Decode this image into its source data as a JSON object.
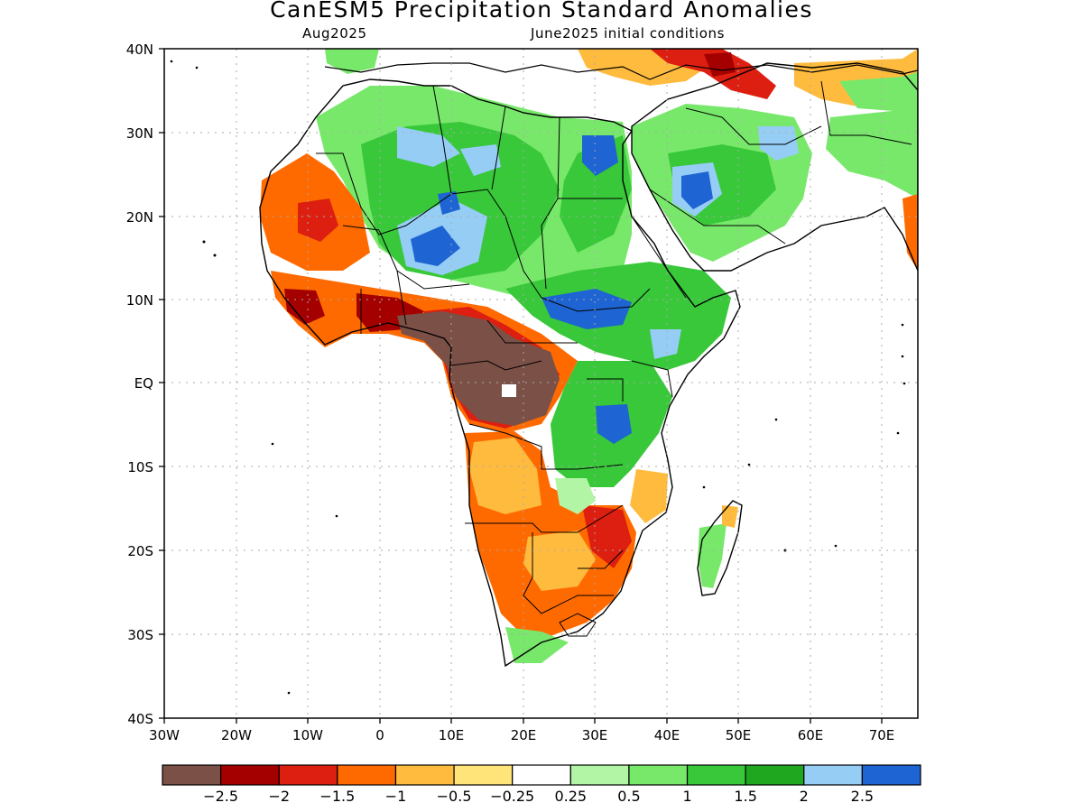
{
  "title": "CanESM5 Precipitation Standard Anomalies",
  "subtitle_left": "Aug2025",
  "subtitle_right": "June2025 initial conditions",
  "lat_labels": [
    "40N",
    "30N",
    "20N",
    "10N",
    "EQ",
    "10S",
    "20S",
    "30S",
    "40S"
  ],
  "lon_labels": [
    "30W",
    "20W",
    "10W",
    "0",
    "10E",
    "20E",
    "30E",
    "40E",
    "50E",
    "60E",
    "70E"
  ],
  "colorbar": {
    "colors": [
      "#7b5047",
      "#a50000",
      "#dc1f10",
      "#ff6a00",
      "#ffbb3d",
      "#ffe47a",
      "#ffffff",
      "#b2f5a5",
      "#78e86b",
      "#38c83a",
      "#1fa81f",
      "#96cdf5",
      "#1e64d2"
    ],
    "labels": [
      "−2.5",
      "−2",
      "−1.5",
      "−1",
      "−0.5",
      "−0.25",
      "0.25",
      "0.5",
      "1",
      "1.5",
      "2",
      "2.5"
    ]
  }
}
